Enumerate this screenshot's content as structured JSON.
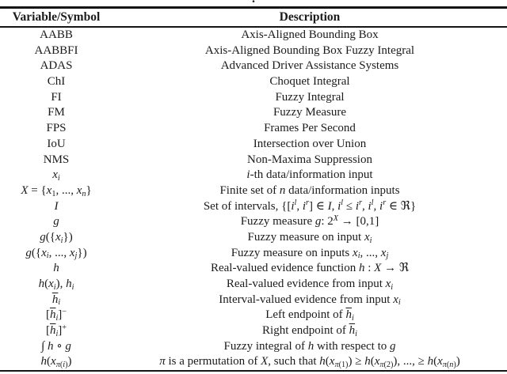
{
  "page": {
    "caption_period": ".",
    "colors": {
      "background": "#ffffff",
      "text": "#1b1b1b",
      "rule": "#151515"
    }
  },
  "table": {
    "headers": {
      "symbol": "Variable/Symbol",
      "description": "Description"
    },
    "rows": [
      {
        "symbol": "AABB",
        "description": "Axis-Aligned Bounding Box"
      },
      {
        "symbol": "AABBFI",
        "description": "Axis-Aligned Bounding Box Fuzzy Integral"
      },
      {
        "symbol": "ADAS",
        "description": "Advanced Driver Assistance Systems"
      },
      {
        "symbol": "ChI",
        "description": "Choquet Integral"
      },
      {
        "symbol": "FI",
        "description": "Fuzzy Integral"
      },
      {
        "symbol": "FM",
        "description": "Fuzzy Measure"
      },
      {
        "symbol": "FPS",
        "description": "Frames Per Second"
      },
      {
        "symbol": "IoU",
        "description": "Intersection over Union"
      },
      {
        "symbol": "NMS",
        "description": "Non-Maxima Suppression"
      },
      {
        "symbol": "<i>x</i><sub><i>i</i></sub>",
        "description": "<i>i</i>-th data/information input"
      },
      {
        "symbol": "<i>X</i> = {<i>x</i><sub>1</sub>, ..., <i>x</i><sub><i>n</i></sub>}",
        "description": "Finite set of <i>n</i> data/information inputs"
      },
      {
        "symbol": "<i>I</i>",
        "description": "Set of intervals, {[<i>i</i><sup><i>l</i></sup>, <i>i</i><sup><i>r</i></sup>] ∈ <i>I</i>, <i>i</i><sup><i>l</i></sup> ≤ <i>i</i><sup><i>r</i></sup>, <i>i</i><sup><i>l</i></sup>, <i>i</i><sup><i>r</i></sup> ∈ ℜ}"
      },
      {
        "symbol": "<i>g</i>",
        "description": "Fuzzy measure <i>g</i>: 2<sup><i>X</i></sup> → [0,1]"
      },
      {
        "symbol": "<i>g</i>({<i>x</i><sub><i>i</i></sub>})",
        "description": "Fuzzy measure on input <i>x</i><sub><i>i</i></sub>"
      },
      {
        "symbol": "<i>g</i>({<i>x</i><sub><i>i</i></sub>, ..., <i>x</i><sub><i>j</i></sub>})",
        "description": "Fuzzy measure on inputs <i>x</i><sub><i>i</i></sub>, ..., <i>x</i><sub><i>j</i></sub>"
      },
      {
        "symbol": "<i>h</i>",
        "description": "Real-valued evidence function <i>h</i> : <i>X</i> → ℜ"
      },
      {
        "symbol": "<i>h</i>(<i>x</i><sub><i>i</i></sub>), <i>h</i><sub><i>i</i></sub>",
        "description": "Real-valued evidence from input <i>x</i><sub><i>i</i></sub>"
      },
      {
        "symbol": "<span class='ov'><i>h</i></span><sub><i>i</i></sub>",
        "description": "Interval-valued evidence from input <i>x</i><sub><i>i</i></sub>"
      },
      {
        "symbol": "[<span class='ov'><i>h</i></span><sub><i>i</i></sub>]<sup>−</sup>",
        "description": "Left endpoint of <span class='ov'><i>h</i></span><sub><i>i</i></sub>"
      },
      {
        "symbol": "[<span class='ov'><i>h</i></span><sub><i>i</i></sub>]<sup>+</sup>",
        "description": "Right endpoint of <span class='ov'><i>h</i></span><sub><i>i</i></sub>"
      },
      {
        "symbol": "∫ <i>h</i> ∘ <i>g</i>",
        "description": "Fuzzy integral of <i>h</i> with respect to <i>g</i>"
      },
      {
        "symbol": "<i>h</i>(<i>x</i><sub><i>π</i>(<i>i</i>)</sub>)",
        "description": "<i>π</i> is a permutation of <i>X</i>, such that <i>h</i>(<i>x</i><sub><i>π</i>(1)</sub>) ≥ <i>h</i>(<i>x</i><sub><i>π</i>(2)</sub>), ..., ≥ <i>h</i>(<i>x</i><sub><i>π</i>(<i>n</i>)</sub>)"
      }
    ]
  }
}
